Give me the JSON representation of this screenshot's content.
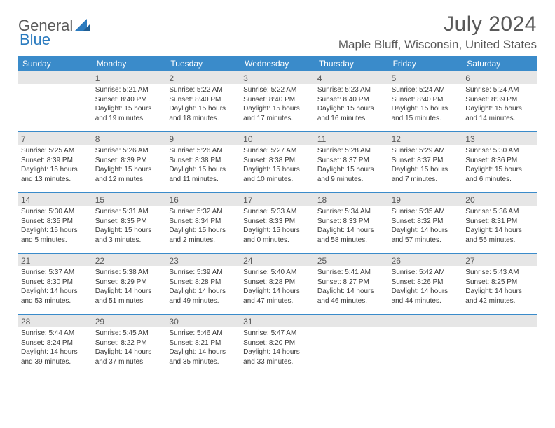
{
  "brand": {
    "part1": "General",
    "part2": "Blue"
  },
  "title": "July 2024",
  "location": "Maple Bluff, Wisconsin, United States",
  "colors": {
    "header_bg": "#3a8bca",
    "header_text": "#ffffff",
    "date_bar_bg": "#e6e6e6",
    "text": "#595959",
    "body_text": "#3a3a3a",
    "rule": "#3a8bca"
  },
  "day_names": [
    "Sunday",
    "Monday",
    "Tuesday",
    "Wednesday",
    "Thursday",
    "Friday",
    "Saturday"
  ],
  "weeks": [
    [
      {
        "date": "",
        "sunrise": "",
        "sunset": "",
        "daylight": ""
      },
      {
        "date": "1",
        "sunrise": "Sunrise: 5:21 AM",
        "sunset": "Sunset: 8:40 PM",
        "daylight": "Daylight: 15 hours and 19 minutes."
      },
      {
        "date": "2",
        "sunrise": "Sunrise: 5:22 AM",
        "sunset": "Sunset: 8:40 PM",
        "daylight": "Daylight: 15 hours and 18 minutes."
      },
      {
        "date": "3",
        "sunrise": "Sunrise: 5:22 AM",
        "sunset": "Sunset: 8:40 PM",
        "daylight": "Daylight: 15 hours and 17 minutes."
      },
      {
        "date": "4",
        "sunrise": "Sunrise: 5:23 AM",
        "sunset": "Sunset: 8:40 PM",
        "daylight": "Daylight: 15 hours and 16 minutes."
      },
      {
        "date": "5",
        "sunrise": "Sunrise: 5:24 AM",
        "sunset": "Sunset: 8:40 PM",
        "daylight": "Daylight: 15 hours and 15 minutes."
      },
      {
        "date": "6",
        "sunrise": "Sunrise: 5:24 AM",
        "sunset": "Sunset: 8:39 PM",
        "daylight": "Daylight: 15 hours and 14 minutes."
      }
    ],
    [
      {
        "date": "7",
        "sunrise": "Sunrise: 5:25 AM",
        "sunset": "Sunset: 8:39 PM",
        "daylight": "Daylight: 15 hours and 13 minutes."
      },
      {
        "date": "8",
        "sunrise": "Sunrise: 5:26 AM",
        "sunset": "Sunset: 8:39 PM",
        "daylight": "Daylight: 15 hours and 12 minutes."
      },
      {
        "date": "9",
        "sunrise": "Sunrise: 5:26 AM",
        "sunset": "Sunset: 8:38 PM",
        "daylight": "Daylight: 15 hours and 11 minutes."
      },
      {
        "date": "10",
        "sunrise": "Sunrise: 5:27 AM",
        "sunset": "Sunset: 8:38 PM",
        "daylight": "Daylight: 15 hours and 10 minutes."
      },
      {
        "date": "11",
        "sunrise": "Sunrise: 5:28 AM",
        "sunset": "Sunset: 8:37 PM",
        "daylight": "Daylight: 15 hours and 9 minutes."
      },
      {
        "date": "12",
        "sunrise": "Sunrise: 5:29 AM",
        "sunset": "Sunset: 8:37 PM",
        "daylight": "Daylight: 15 hours and 7 minutes."
      },
      {
        "date": "13",
        "sunrise": "Sunrise: 5:30 AM",
        "sunset": "Sunset: 8:36 PM",
        "daylight": "Daylight: 15 hours and 6 minutes."
      }
    ],
    [
      {
        "date": "14",
        "sunrise": "Sunrise: 5:30 AM",
        "sunset": "Sunset: 8:35 PM",
        "daylight": "Daylight: 15 hours and 5 minutes."
      },
      {
        "date": "15",
        "sunrise": "Sunrise: 5:31 AM",
        "sunset": "Sunset: 8:35 PM",
        "daylight": "Daylight: 15 hours and 3 minutes."
      },
      {
        "date": "16",
        "sunrise": "Sunrise: 5:32 AM",
        "sunset": "Sunset: 8:34 PM",
        "daylight": "Daylight: 15 hours and 2 minutes."
      },
      {
        "date": "17",
        "sunrise": "Sunrise: 5:33 AM",
        "sunset": "Sunset: 8:33 PM",
        "daylight": "Daylight: 15 hours and 0 minutes."
      },
      {
        "date": "18",
        "sunrise": "Sunrise: 5:34 AM",
        "sunset": "Sunset: 8:33 PM",
        "daylight": "Daylight: 14 hours and 58 minutes."
      },
      {
        "date": "19",
        "sunrise": "Sunrise: 5:35 AM",
        "sunset": "Sunset: 8:32 PM",
        "daylight": "Daylight: 14 hours and 57 minutes."
      },
      {
        "date": "20",
        "sunrise": "Sunrise: 5:36 AM",
        "sunset": "Sunset: 8:31 PM",
        "daylight": "Daylight: 14 hours and 55 minutes."
      }
    ],
    [
      {
        "date": "21",
        "sunrise": "Sunrise: 5:37 AM",
        "sunset": "Sunset: 8:30 PM",
        "daylight": "Daylight: 14 hours and 53 minutes."
      },
      {
        "date": "22",
        "sunrise": "Sunrise: 5:38 AM",
        "sunset": "Sunset: 8:29 PM",
        "daylight": "Daylight: 14 hours and 51 minutes."
      },
      {
        "date": "23",
        "sunrise": "Sunrise: 5:39 AM",
        "sunset": "Sunset: 8:28 PM",
        "daylight": "Daylight: 14 hours and 49 minutes."
      },
      {
        "date": "24",
        "sunrise": "Sunrise: 5:40 AM",
        "sunset": "Sunset: 8:28 PM",
        "daylight": "Daylight: 14 hours and 47 minutes."
      },
      {
        "date": "25",
        "sunrise": "Sunrise: 5:41 AM",
        "sunset": "Sunset: 8:27 PM",
        "daylight": "Daylight: 14 hours and 46 minutes."
      },
      {
        "date": "26",
        "sunrise": "Sunrise: 5:42 AM",
        "sunset": "Sunset: 8:26 PM",
        "daylight": "Daylight: 14 hours and 44 minutes."
      },
      {
        "date": "27",
        "sunrise": "Sunrise: 5:43 AM",
        "sunset": "Sunset: 8:25 PM",
        "daylight": "Daylight: 14 hours and 42 minutes."
      }
    ],
    [
      {
        "date": "28",
        "sunrise": "Sunrise: 5:44 AM",
        "sunset": "Sunset: 8:24 PM",
        "daylight": "Daylight: 14 hours and 39 minutes."
      },
      {
        "date": "29",
        "sunrise": "Sunrise: 5:45 AM",
        "sunset": "Sunset: 8:22 PM",
        "daylight": "Daylight: 14 hours and 37 minutes."
      },
      {
        "date": "30",
        "sunrise": "Sunrise: 5:46 AM",
        "sunset": "Sunset: 8:21 PM",
        "daylight": "Daylight: 14 hours and 35 minutes."
      },
      {
        "date": "31",
        "sunrise": "Sunrise: 5:47 AM",
        "sunset": "Sunset: 8:20 PM",
        "daylight": "Daylight: 14 hours and 33 minutes."
      },
      {
        "date": "",
        "sunrise": "",
        "sunset": "",
        "daylight": ""
      },
      {
        "date": "",
        "sunrise": "",
        "sunset": "",
        "daylight": ""
      },
      {
        "date": "",
        "sunrise": "",
        "sunset": "",
        "daylight": ""
      }
    ]
  ]
}
